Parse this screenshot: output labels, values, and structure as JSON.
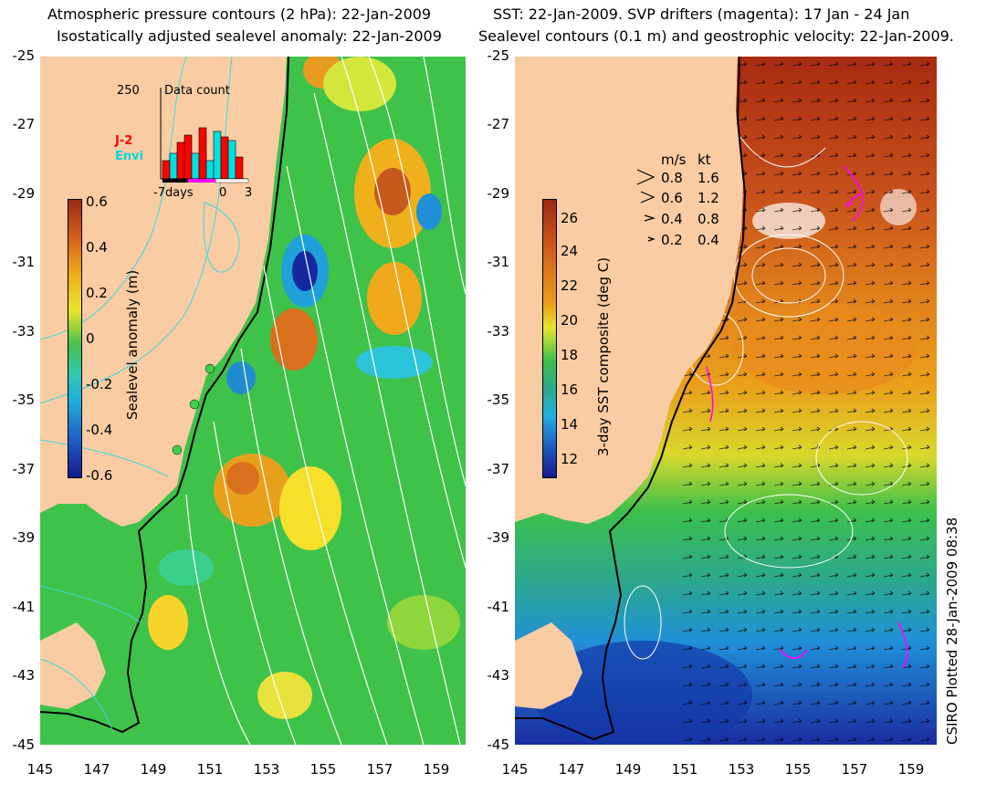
{
  "left_panel": {
    "title_line1": "Atmospheric pressure contours (2 hPa): 22-Jan-2009",
    "title_line2": "Isostatically adjusted sealevel anomaly: 22-Jan-2009",
    "colorbar_label": "Sealevel anomaly (m)",
    "colorbar_ticks": [
      "0.6",
      "0.4",
      "0.2",
      "0",
      "-0.2",
      "-0.4",
      "-0.6"
    ],
    "inset": {
      "max_label": "250",
      "count_label": "Data count",
      "satellite_1": "J-2",
      "satellite_2": "Envi",
      "x_start": "-7days",
      "x_zero": "0",
      "x_end": "3"
    }
  },
  "right_panel": {
    "title_line1": "SST: 22-Jan-2009. SVP drifters (magenta): 17 Jan - 24 Jan",
    "title_line2": "Sealevel contours (0.1 m) and geostrophic velocity: 22-Jan-2009.",
    "colorbar_label": "3-day SST composite (deg C)",
    "colorbar_ticks": [
      "26",
      "24",
      "22",
      "20",
      "18",
      "16",
      "14",
      "12"
    ],
    "velocity_legend": {
      "header_ms": "m/s",
      "header_kt": "kt",
      "rows": [
        {
          "ms": "0.8",
          "kt": "1.6"
        },
        {
          "ms": "0.6",
          "kt": "1.2"
        },
        {
          "ms": "0.4",
          "kt": "0.8"
        },
        {
          "ms": "0.2",
          "kt": "0.4"
        }
      ]
    }
  },
  "axes": {
    "y_ticks": [
      "-25",
      "-27",
      "-29",
      "-31",
      "-33",
      "-35",
      "-37",
      "-39",
      "-41",
      "-43",
      "-45"
    ],
    "x_ticks": [
      "145",
      "147",
      "149",
      "151",
      "153",
      "155",
      "157",
      "159"
    ]
  },
  "credit": "CSIRO Plotted 28-Jan-2009 08:38",
  "colors": {
    "land": "#f9cca3",
    "ocean_green": "#3dc14a",
    "warm": "#d8561c",
    "cool": "#18a4d8",
    "drifter": "#ff00ff",
    "inset_j2": "#ff0000",
    "inset_envi": "#00e0e0"
  }
}
